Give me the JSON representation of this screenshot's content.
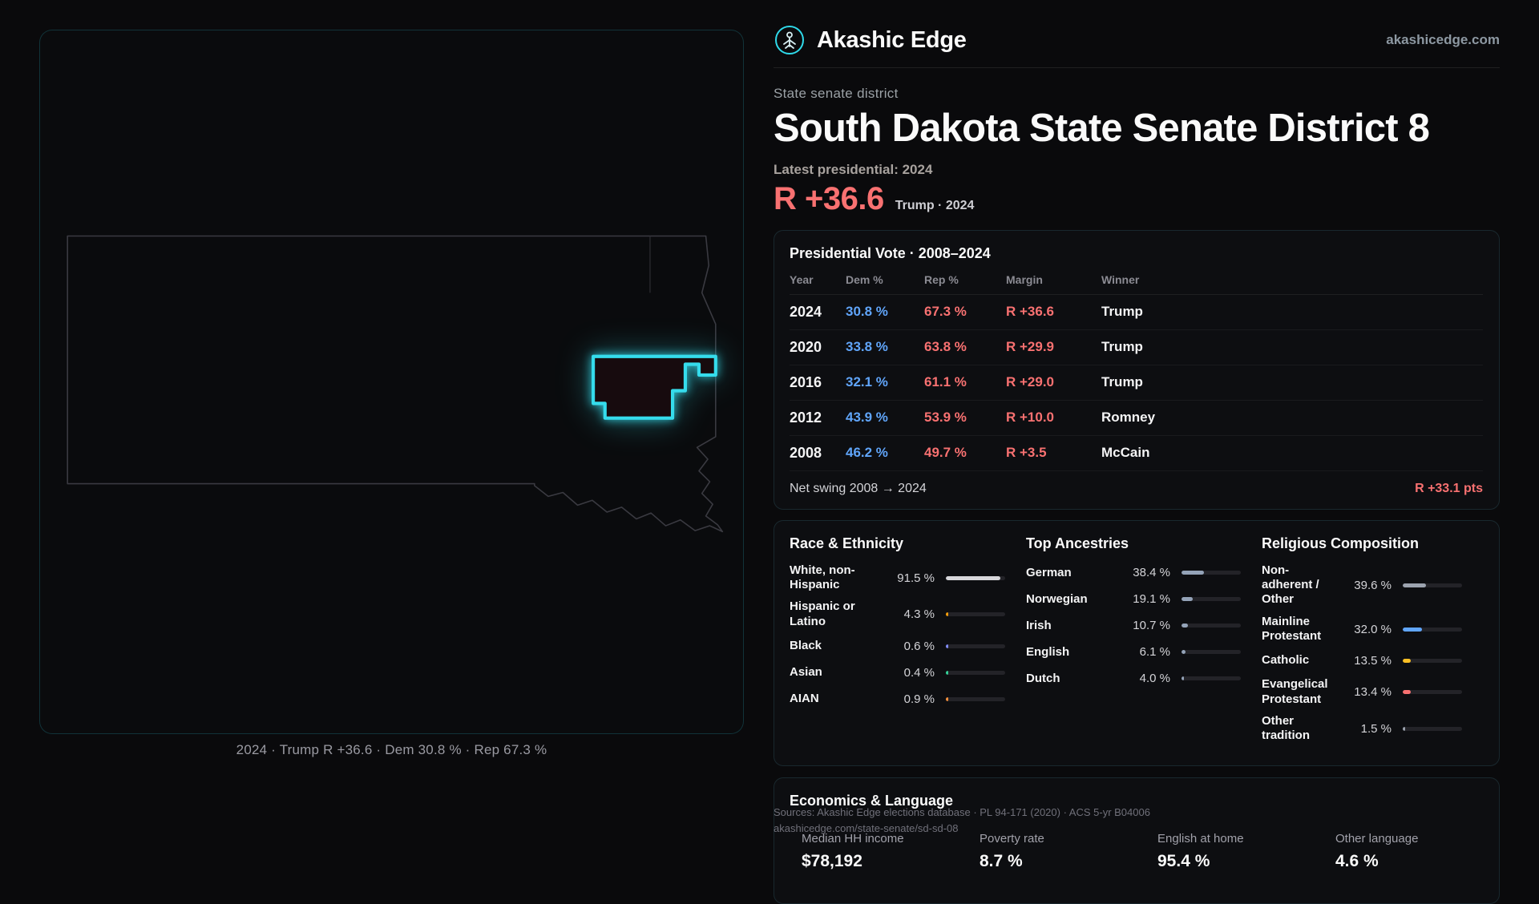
{
  "brand": {
    "name": "Akashic Edge",
    "domain": "akashicedge.com"
  },
  "hero": {
    "kicker": "State senate district",
    "title": "South Dakota State Senate District 8",
    "latest_label": "Latest presidential: 2024",
    "margin": "R +36.6",
    "margin_context": "Trump · 2024"
  },
  "map": {
    "caption": "2024 · Trump R +36.6 · Dem 30.8 % · Rep 67.3 %"
  },
  "presidential": {
    "title": "Presidential Vote · 2008–2024",
    "columns": [
      "Year",
      "Dem %",
      "Rep %",
      "Margin",
      "Winner"
    ],
    "rows": [
      {
        "year": "2024",
        "dem": "30.8 %",
        "rep": "67.3 %",
        "margin": "R +36.6",
        "winner": "Trump"
      },
      {
        "year": "2020",
        "dem": "33.8 %",
        "rep": "63.8 %",
        "margin": "R +29.9",
        "winner": "Trump"
      },
      {
        "year": "2016",
        "dem": "32.1 %",
        "rep": "61.1 %",
        "margin": "R +29.0",
        "winner": "Trump"
      },
      {
        "year": "2012",
        "dem": "43.9 %",
        "rep": "53.9 %",
        "margin": "R +10.0",
        "winner": "Romney"
      },
      {
        "year": "2008",
        "dem": "46.2 %",
        "rep": "49.7 %",
        "margin": "R +3.5",
        "winner": "McCain"
      }
    ],
    "net_swing_label": "Net swing 2008 → 2024",
    "net_swing_value": "R +33.1 pts"
  },
  "race": {
    "title": "Race & Ethnicity",
    "rows": [
      {
        "label": "White, non-Hispanic",
        "value": "91.5 %",
        "pct": 91.5,
        "color": "#d7d7db"
      },
      {
        "label": "Hispanic or Latino",
        "value": "4.3 %",
        "pct": 4.3,
        "color": "#f59e0b"
      },
      {
        "label": "Black",
        "value": "0.6 %",
        "pct": 0.6,
        "color": "#818cf8"
      },
      {
        "label": "Asian",
        "value": "0.4 %",
        "pct": 0.4,
        "color": "#34d399"
      },
      {
        "label": "AIAN",
        "value": "0.9 %",
        "pct": 0.9,
        "color": "#fb923c"
      }
    ]
  },
  "ancestries": {
    "title": "Top Ancestries",
    "rows": [
      {
        "label": "German",
        "value": "38.4 %",
        "pct": 38.4,
        "color": "#94a3b8"
      },
      {
        "label": "Norwegian",
        "value": "19.1 %",
        "pct": 19.1,
        "color": "#94a3b8"
      },
      {
        "label": "Irish",
        "value": "10.7 %",
        "pct": 10.7,
        "color": "#94a3b8"
      },
      {
        "label": "English",
        "value": "6.1 %",
        "pct": 6.1,
        "color": "#94a3b8"
      },
      {
        "label": "Dutch",
        "value": "4.0 %",
        "pct": 4.0,
        "color": "#94a3b8"
      }
    ]
  },
  "religion": {
    "title": "Religious Composition",
    "rows": [
      {
        "label": "Non-adherent / Other",
        "value": "39.6 %",
        "pct": 39.6,
        "color": "#9ca3af"
      },
      {
        "label": "Mainline Protestant",
        "value": "32.0 %",
        "pct": 32.0,
        "color": "#60a5fa"
      },
      {
        "label": "Catholic",
        "value": "13.5 %",
        "pct": 13.5,
        "color": "#fbbf24"
      },
      {
        "label": "Evangelical Protestant",
        "value": "13.4 %",
        "pct": 13.4,
        "color": "#f87171"
      },
      {
        "label": "Other tradition",
        "value": "1.5 %",
        "pct": 1.5,
        "color": "#9ca3af"
      }
    ]
  },
  "economics": {
    "title": "Economics & Language",
    "stats": [
      {
        "label": "Median HH income",
        "value": "$78,192"
      },
      {
        "label": "Poverty rate",
        "value": "8.7 %"
      },
      {
        "label": "English at home",
        "value": "95.4 %"
      },
      {
        "label": "Other language",
        "value": "4.6 %"
      }
    ]
  },
  "sources": {
    "line1": "Sources: Akashic Edge elections database · PL 94-171 (2020) · ACS 5-yr B04006",
    "line2": "akashicedge.com/state-senate/sd-sd-08"
  },
  "colors": {
    "accent": "#2fd9e9",
    "rep_red": "#f87171",
    "dem_blue": "#60a5fa"
  }
}
